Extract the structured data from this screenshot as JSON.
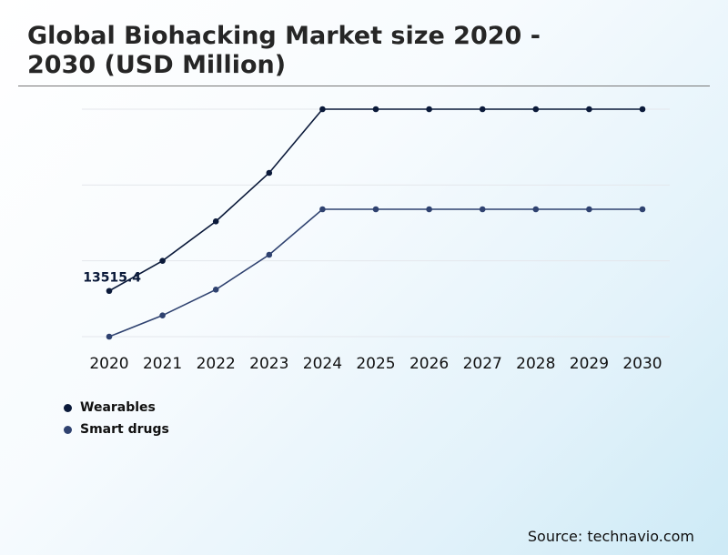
{
  "chart_data": {
    "type": "line",
    "title": "Global Biohacking Market size 2020 - 2030 (USD Million)",
    "x": [
      "2020",
      "2021",
      "2022",
      "2023",
      "2024",
      "2025",
      "2026",
      "2027",
      "2028",
      "2029",
      "2030"
    ],
    "series": [
      {
        "name": "Wearables",
        "color": "#0b1a3a",
        "values": [
          13515.4,
          15500,
          18100,
          21300,
          25500,
          25500,
          25500,
          25500,
          25500,
          25500,
          25500
        ]
      },
      {
        "name": "Smart drugs",
        "color": "#2f4270",
        "values": [
          10500,
          11900,
          13600,
          15900,
          18900,
          18900,
          18900,
          18900,
          18900,
          18900,
          18900
        ]
      }
    ],
    "data_labels": [
      {
        "series": 0,
        "index": 0,
        "text": "13515.4"
      }
    ],
    "ylim": [
      10500,
      25500
    ],
    "grid": true,
    "legend_position": "bottom-left"
  },
  "source": "Source: technavio.com"
}
